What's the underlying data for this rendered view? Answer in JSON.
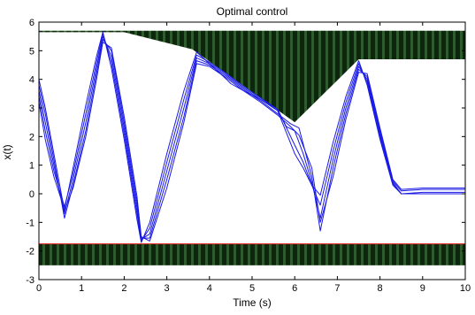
{
  "chart_data": {
    "type": "line",
    "title": "Optimal control",
    "xlabel": "Time (s)",
    "ylabel": "x(t)",
    "xlim": [
      0,
      10
    ],
    "ylim": [
      -3,
      6
    ],
    "x_ticks": [
      "0",
      "1",
      "2",
      "3",
      "4",
      "5",
      "6",
      "7",
      "8",
      "9",
      "10"
    ],
    "y_ticks": [
      "-3",
      "-2",
      "-1",
      "0",
      "1",
      "2",
      "3",
      "4",
      "5",
      "6"
    ],
    "grid": false,
    "colors": {
      "series": "#1a1ae6",
      "constraint_fill": "#0d260d",
      "constraint_stripe": "#2e5c2e",
      "lower_bound_line": "#e03030"
    },
    "constraints": {
      "upper": {
        "x": [
          0,
          2,
          3.6,
          6,
          7.5,
          10
        ],
        "y": [
          5.65,
          5.65,
          5.05,
          2.5,
          4.7,
          4.7
        ]
      },
      "lower": {
        "x": [
          0,
          10
        ],
        "y": [
          -1.75,
          -1.75
        ]
      }
    },
    "series": [
      {
        "x": [
          0,
          0.15,
          0.35,
          0.6,
          0.8,
          1.1,
          1.35,
          1.5,
          1.7,
          2.0,
          2.3,
          2.4,
          2.6,
          3.0,
          3.4,
          3.7,
          4.0,
          4.4,
          4.8,
          5.2,
          5.6,
          6.0,
          6.2,
          6.4,
          6.6,
          6.9,
          7.2,
          7.5,
          7.7,
          8.0,
          8.3,
          8.5,
          9.0,
          10.0
        ],
        "y": [
          3.2,
          1.9,
          0.6,
          -0.55,
          0.9,
          3.1,
          4.8,
          5.65,
          4.4,
          1.9,
          -0.9,
          -1.7,
          -1.0,
          1.4,
          3.6,
          4.95,
          4.55,
          4.15,
          3.7,
          3.3,
          2.9,
          1.4,
          0.9,
          0.3,
          -0.05,
          1.8,
          3.4,
          4.65,
          3.8,
          1.9,
          0.3,
          0.0,
          0.0,
          0.0
        ]
      },
      {
        "x": [
          0,
          0.15,
          0.35,
          0.6,
          0.8,
          1.1,
          1.35,
          1.5,
          1.7,
          2.0,
          2.3,
          2.4,
          2.6,
          3.0,
          3.4,
          3.7,
          4.0,
          4.4,
          4.8,
          5.2,
          5.6,
          6.0,
          6.2,
          6.4,
          6.6,
          6.9,
          7.2,
          7.5,
          7.7,
          8.0,
          8.3,
          8.5,
          9.0,
          10.0
        ],
        "y": [
          3.4,
          2.2,
          0.8,
          -0.45,
          0.7,
          2.8,
          4.6,
          5.6,
          4.6,
          2.1,
          -0.7,
          -1.65,
          -1.2,
          1.1,
          3.3,
          4.85,
          4.6,
          4.2,
          3.75,
          3.35,
          2.95,
          1.7,
          1.1,
          0.3,
          -0.4,
          1.5,
          3.2,
          4.55,
          3.9,
          2.0,
          0.35,
          0.0,
          0.0,
          0.0
        ]
      },
      {
        "x": [
          0,
          0.15,
          0.35,
          0.6,
          0.8,
          1.1,
          1.35,
          1.5,
          1.7,
          2.0,
          2.3,
          2.4,
          2.6,
          3.0,
          3.4,
          3.7,
          4.0,
          4.4,
          4.5,
          4.8,
          5.2,
          5.6,
          5.8,
          6.0,
          6.2,
          6.4,
          6.6,
          6.9,
          7.2,
          7.5,
          7.7,
          8.0,
          8.3,
          8.5,
          9.0,
          10.0
        ],
        "y": [
          3.6,
          2.5,
          1.0,
          -0.7,
          0.5,
          2.5,
          4.4,
          5.5,
          4.8,
          2.3,
          -0.5,
          -1.6,
          -1.4,
          0.8,
          3.0,
          4.75,
          4.55,
          4.0,
          3.85,
          3.6,
          3.3,
          2.95,
          2.35,
          2.2,
          1.4,
          0.4,
          -0.85,
          1.2,
          3.0,
          4.45,
          4.0,
          2.1,
          0.4,
          0.0,
          0.05,
          0.05
        ]
      },
      {
        "x": [
          0,
          0.15,
          0.35,
          0.6,
          0.8,
          1.1,
          1.35,
          1.5,
          1.7,
          2.0,
          2.3,
          2.4,
          2.6,
          3.0,
          3.4,
          3.7,
          4.0,
          4.4,
          4.8,
          5.2,
          5.6,
          5.9,
          6.1,
          6.4,
          6.6,
          6.9,
          7.2,
          7.5,
          7.7,
          8.0,
          8.3,
          8.5,
          9.0,
          10.0
        ],
        "y": [
          3.8,
          2.8,
          1.2,
          -0.85,
          0.3,
          2.2,
          4.2,
          5.4,
          5.0,
          2.5,
          -0.3,
          -1.55,
          -1.55,
          0.5,
          2.7,
          4.65,
          4.5,
          4.1,
          3.65,
          3.25,
          2.8,
          2.45,
          2.3,
          0.6,
          -1.3,
          0.9,
          2.8,
          4.35,
          4.1,
          2.2,
          0.45,
          0.1,
          0.15,
          0.15
        ]
      },
      {
        "x": [
          0,
          0.15,
          0.35,
          0.6,
          0.8,
          1.1,
          1.35,
          1.5,
          1.7,
          2.0,
          2.3,
          2.4,
          2.6,
          3.0,
          3.4,
          3.7,
          4.0,
          4.4,
          4.8,
          5.2,
          5.6,
          5.9,
          6.1,
          6.4,
          6.6,
          6.9,
          7.2,
          7.5,
          7.7,
          8.0,
          8.3,
          8.5,
          9.0,
          10.0
        ],
        "y": [
          4.0,
          3.0,
          1.4,
          -0.6,
          0.2,
          2.0,
          4.0,
          5.3,
          5.1,
          2.7,
          -0.1,
          -1.5,
          -1.65,
          0.2,
          2.5,
          4.55,
          4.45,
          4.05,
          3.6,
          3.2,
          2.75,
          2.35,
          2.05,
          0.9,
          -1.0,
          0.6,
          2.6,
          4.25,
          4.2,
          2.3,
          0.5,
          0.15,
          0.2,
          0.2
        ]
      }
    ]
  }
}
